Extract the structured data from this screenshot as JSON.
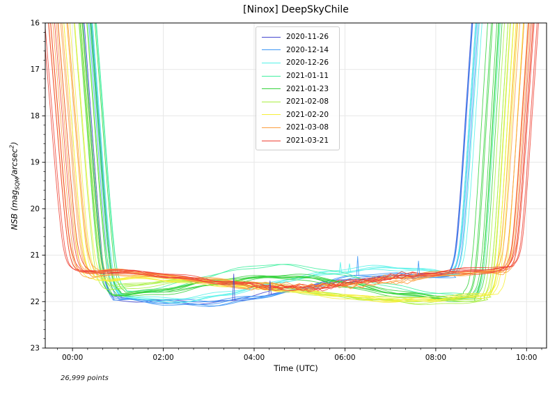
{
  "figure": {
    "title": "[Ninox] DeepSkyChile",
    "annotation": "26,999 points",
    "x_axis": {
      "label": "Time (UTC)"
    },
    "y_axis": {
      "label_parts": {
        "pre": "NSB (mag",
        "sub": "SQM",
        "mid": "/arcsec",
        "sup": "2",
        "post": ")"
      }
    }
  },
  "chart_data": {
    "type": "line",
    "title": "[Ninox] DeepSkyChile",
    "xlabel": "Time (UTC)",
    "ylabel": "NSB (mag_SQM/arcsec^2)",
    "x_unit": "hours UTC",
    "xlim": [
      -0.6,
      10.44
    ],
    "ylim": [
      16,
      23
    ],
    "y_axis_inverted": true,
    "grid": "major",
    "x_major_ticks_hours": [
      0,
      2,
      4,
      6,
      8,
      10
    ],
    "x_major_tick_labels": [
      "00:00",
      "02:00",
      "04:00",
      "06:00",
      "08:00",
      "10:00"
    ],
    "x_minor_step_hours": 0.33333,
    "y_major_ticks": [
      16,
      17,
      18,
      19,
      20,
      21,
      22,
      23
    ],
    "y_minor_step": 0.2,
    "legend_position": "upper-center-left",
    "total_points": 26999,
    "series": [
      {
        "name": "2020-11-26",
        "color": "#4446cf",
        "n_lines": 2,
        "twilight_end_h": 0.24,
        "twilight_start_h": 8.82,
        "spread_t": 0.02,
        "spread_m": 0.03,
        "jagged": false,
        "profile": [
          [
            0.95,
            21.95
          ],
          [
            2.2,
            22.0
          ],
          [
            3.2,
            22.0
          ],
          [
            4.5,
            21.8
          ],
          [
            5.5,
            21.62
          ],
          [
            6.5,
            21.5
          ],
          [
            7.5,
            21.45
          ],
          [
            8.25,
            21.45
          ]
        ]
      },
      {
        "name": "2020-12-14",
        "color": "#3d96f5",
        "n_lines": 5,
        "twilight_end_h": 0.32,
        "twilight_start_h": 8.85,
        "spread_t": 0.035,
        "spread_m": 0.04,
        "jagged": false,
        "profile": [
          [
            1.0,
            21.92
          ],
          [
            2.0,
            22.0
          ],
          [
            3.0,
            22.02
          ],
          [
            4.0,
            21.9
          ],
          [
            5.0,
            21.72
          ],
          [
            6.0,
            21.5
          ],
          [
            7.0,
            21.42
          ],
          [
            8.3,
            21.45
          ]
        ]
      },
      {
        "name": "2020-12-26",
        "color": "#52f2e9",
        "n_lines": 4,
        "twilight_end_h": 0.4,
        "twilight_start_h": 8.95,
        "spread_t": 0.03,
        "spread_m": 0.04,
        "jagged": false,
        "profile": [
          [
            1.1,
            21.88
          ],
          [
            2.0,
            21.97
          ],
          [
            3.0,
            21.9
          ],
          [
            4.0,
            21.72
          ],
          [
            5.0,
            21.5
          ],
          [
            6.0,
            21.35
          ],
          [
            7.0,
            21.3
          ],
          [
            8.4,
            21.4
          ]
        ]
      },
      {
        "name": "2021-01-11",
        "color": "#41f0a0",
        "n_lines": 2,
        "twilight_end_h": 0.52,
        "twilight_start_h": 9.42,
        "spread_t": 0.03,
        "spread_m": 0.03,
        "jagged": false,
        "profile": [
          [
            1.25,
            21.8
          ],
          [
            2.2,
            21.68
          ],
          [
            3.2,
            21.42
          ],
          [
            4.3,
            21.22
          ],
          [
            5.0,
            21.25
          ],
          [
            6.0,
            21.45
          ],
          [
            7.0,
            21.68
          ],
          [
            8.0,
            21.82
          ],
          [
            8.8,
            21.88
          ]
        ]
      },
      {
        "name": "2021-01-23",
        "color": "#35d23c",
        "n_lines": 7,
        "twilight_end_h": 0.3,
        "twilight_start_h": 9.32,
        "spread_t": 0.04,
        "spread_m": 0.05,
        "jagged": false,
        "profile": [
          [
            1.05,
            21.85
          ],
          [
            2.0,
            21.78
          ],
          [
            3.0,
            21.62
          ],
          [
            4.0,
            21.5
          ],
          [
            4.8,
            21.47
          ],
          [
            5.8,
            21.6
          ],
          [
            6.8,
            21.78
          ],
          [
            7.8,
            21.9
          ],
          [
            8.9,
            21.95
          ]
        ]
      },
      {
        "name": "2021-02-08",
        "color": "#a9ef41",
        "n_lines": 5,
        "twilight_end_h": 0.18,
        "twilight_start_h": 9.6,
        "spread_t": 0.035,
        "spread_m": 0.04,
        "jagged": false,
        "profile": [
          [
            0.95,
            21.7
          ],
          [
            1.8,
            21.6
          ],
          [
            2.8,
            21.55
          ],
          [
            3.8,
            21.6
          ],
          [
            4.8,
            21.72
          ],
          [
            5.8,
            21.87
          ],
          [
            6.8,
            21.95
          ],
          [
            7.8,
            22.0
          ],
          [
            9.1,
            21.95
          ]
        ]
      },
      {
        "name": "2021-02-20",
        "color": "#f6ef38",
        "n_lines": 6,
        "twilight_end_h": -0.12,
        "twilight_start_h": 9.78,
        "spread_t": 0.04,
        "spread_m": 0.04,
        "jagged": false,
        "profile": [
          [
            0.62,
            21.55
          ],
          [
            1.5,
            21.5
          ],
          [
            2.5,
            21.56
          ],
          [
            3.5,
            21.65
          ],
          [
            4.5,
            21.76
          ],
          [
            5.5,
            21.86
          ],
          [
            6.5,
            21.95
          ],
          [
            7.5,
            22.0
          ],
          [
            8.8,
            21.92
          ],
          [
            9.25,
            21.85
          ]
        ]
      },
      {
        "name": "2021-03-08",
        "color": "#fc9e3e",
        "n_lines": 8,
        "twilight_end_h": -0.3,
        "twilight_start_h": 10.0,
        "spread_t": 0.04,
        "spread_m": 0.05,
        "jagged": true,
        "profile": [
          [
            0.42,
            21.42
          ],
          [
            1.0,
            21.38
          ],
          [
            1.8,
            21.43
          ],
          [
            2.8,
            21.55
          ],
          [
            3.8,
            21.65
          ],
          [
            5.0,
            21.7
          ],
          [
            6.0,
            21.65
          ],
          [
            7.0,
            21.55
          ],
          [
            8.0,
            21.45
          ],
          [
            9.0,
            21.4
          ],
          [
            9.45,
            21.4
          ]
        ]
      },
      {
        "name": "2021-03-21",
        "color": "#ee4134",
        "n_lines": 6,
        "twilight_end_h": -0.48,
        "twilight_start_h": 10.18,
        "spread_t": 0.04,
        "spread_m": 0.04,
        "jagged": true,
        "profile": [
          [
            0.28,
            21.38
          ],
          [
            1.0,
            21.36
          ],
          [
            2.0,
            21.44
          ],
          [
            3.0,
            21.56
          ],
          [
            4.2,
            21.68
          ],
          [
            5.2,
            21.72
          ],
          [
            6.0,
            21.62
          ],
          [
            7.0,
            21.5
          ],
          [
            8.0,
            21.4
          ],
          [
            9.2,
            21.32
          ],
          [
            9.6,
            21.3
          ]
        ]
      }
    ],
    "spikes": [
      {
        "series": "2020-11-26",
        "t": 3.55,
        "from_mag": 21.98,
        "to_mag": 21.4
      },
      {
        "series": "2020-12-14",
        "t": 6.28,
        "from_mag": 21.45,
        "to_mag": 21.02
      },
      {
        "series": "2020-12-26",
        "t": 5.9,
        "from_mag": 21.38,
        "to_mag": 21.15
      },
      {
        "series": "2020-12-26",
        "t": 6.1,
        "from_mag": 21.36,
        "to_mag": 21.18
      },
      {
        "series": "2020-12-14",
        "t": 7.62,
        "from_mag": 21.42,
        "to_mag": 21.12
      },
      {
        "series": "2020-11-26",
        "t": 4.35,
        "from_mag": 21.84,
        "to_mag": 21.55
      }
    ]
  }
}
